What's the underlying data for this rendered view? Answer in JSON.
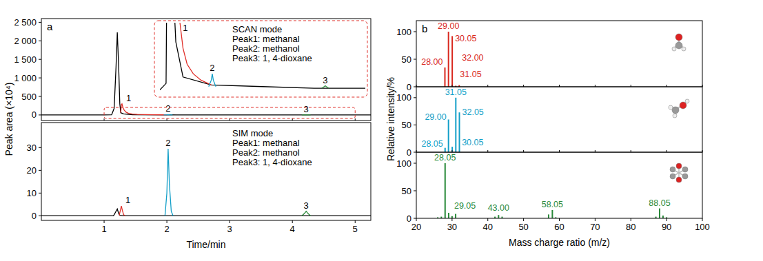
{
  "chart_data": [
    {
      "type": "line",
      "panel": "a",
      "y_label": "Peak area (×10⁴)",
      "text": [
        "SCAN mode",
        "Peak1: methanal",
        "Peak2: methanol",
        "Peak3: 1, 4-dioxane"
      ],
      "xlim": [
        0,
        5.25
      ],
      "xticks": [
        1,
        2,
        3,
        4,
        5
      ],
      "ylim": [
        -150,
        2600
      ],
      "yticks": [
        0,
        500,
        {
          "value": 1000,
          "label": "1 000"
        },
        {
          "value": 1500,
          "label": "1 500"
        },
        {
          "value": 2000,
          "label": "2 000"
        },
        {
          "value": 2500,
          "label": "2 500"
        }
      ],
      "tick_labels": "y",
      "inset": {
        "xlim": [
          1.0,
          5.0
        ],
        "ylim": [
          -2,
          42
        ]
      },
      "series": [
        {
          "color": "#000000",
          "x": [
            0,
            1.0,
            1.12,
            1.16,
            1.19,
            1.21,
            1.23,
            1.25,
            1.265,
            1.31,
            1.45,
            2.0,
            3.0,
            4.0,
            5.0,
            5.25
          ],
          "values": [
            0,
            0,
            4,
            180,
            1300,
            2230,
            1400,
            300,
            60,
            30,
            8,
            3,
            2,
            1,
            1,
            1
          ]
        },
        {
          "label": "1",
          "color": "#e0302a",
          "x": [
            1.265,
            1.275,
            1.285,
            1.3,
            1.32,
            1.35,
            1.39,
            1.45,
            1.53,
            1.65,
            1.8,
            2.0
          ],
          "values": [
            60,
            280,
            300,
            200,
            130,
            75,
            42,
            26,
            16,
            10,
            6,
            3
          ]
        },
        {
          "label": "2",
          "color": "#139fc8",
          "x": [
            1.95,
            2.0,
            2.02,
            2.04,
            2.09
          ],
          "values": [
            2,
            6,
            10,
            6,
            2
          ]
        },
        {
          "label": "3",
          "color": "#2a8a3a",
          "x": [
            4.15,
            4.2,
            4.22,
            4.24,
            4.29
          ],
          "values": [
            1,
            2,
            2.5,
            2,
            1
          ]
        }
      ]
    },
    {
      "type": "line",
      "x_label": "Time/min",
      "text": [
        "SIM mode",
        "Peak1: methanal",
        "Peak2: methanol",
        "Peak3: 1, 4-dioxane"
      ],
      "xlim": [
        0,
        5.25
      ],
      "xticks": [
        1,
        2,
        3,
        4,
        5
      ],
      "ylim": [
        -2,
        41
      ],
      "yticks": [
        0,
        10,
        20,
        30
      ],
      "series": [
        {
          "color": "#000000",
          "x": [
            0,
            1.15,
            1.18,
            1.21,
            1.23,
            1.25,
            1.3,
            5.25
          ],
          "values": [
            0,
            0,
            1.5,
            3.0,
            1.2,
            0.2,
            0,
            0
          ]
        },
        {
          "label": "1",
          "color": "#e0302a",
          "x": [
            1.24,
            1.26,
            1.275,
            1.29,
            1.31,
            1.33
          ],
          "values": [
            0.2,
            2.5,
            4.3,
            2.5,
            0.6,
            0
          ]
        },
        {
          "label": "2",
          "color": "#139fc8",
          "x": [
            1.97,
            2.0,
            2.02,
            2.04,
            2.07,
            2.1
          ],
          "values": [
            0,
            10,
            29.5,
            14,
            2,
            0
          ]
        },
        {
          "label": "3",
          "color": "#2a8a3a",
          "x": [
            4.15,
            4.19,
            4.22,
            4.25,
            4.29
          ],
          "values": [
            0,
            1,
            2,
            1,
            0
          ]
        }
      ]
    },
    {
      "type": "bar",
      "panel": "b",
      "color": "#d9281e",
      "x": [
        28.0,
        29.0,
        30.05,
        31.05,
        32.0
      ],
      "x_labels": [
        "28.00",
        "29.00",
        "30.05",
        "31.05",
        "32.00"
      ],
      "values": [
        35,
        100,
        92,
        2,
        3
      ],
      "xlim": [
        20,
        100
      ],
      "xticks": [
        20,
        30,
        40,
        50,
        60,
        70,
        80,
        90,
        100
      ],
      "ylim": [
        0,
        120
      ],
      "yticks": [
        0,
        50,
        100
      ],
      "tick_labels": "y"
    },
    {
      "type": "bar",
      "color": "#139fc8",
      "y_label": "Relative intensity/%",
      "x": [
        28.05,
        29.0,
        30.05,
        31.05,
        32.05
      ],
      "x_labels": [
        "28.05",
        "29.00",
        "30.05",
        "31.05",
        "32.05"
      ],
      "values": [
        8,
        60,
        10,
        100,
        73
      ],
      "xlim": [
        20,
        100
      ],
      "xticks": [
        20,
        30,
        40,
        50,
        60,
        70,
        80,
        90,
        100
      ],
      "ylim": [
        0,
        120
      ],
      "yticks": [
        0,
        50,
        100
      ],
      "tick_labels": "y"
    },
    {
      "type": "bar",
      "color": "#2a8a3a",
      "x_label": "Mass charge ratio (m/z)",
      "x": [
        26,
        27,
        28.05,
        29.05,
        30,
        31,
        42,
        43.0,
        44,
        57,
        58.05,
        59,
        87,
        88.05,
        89,
        90
      ],
      "x_labels": [
        null,
        null,
        "28.05",
        "29.05",
        null,
        null,
        null,
        "43.00",
        null,
        null,
        "58.05",
        null,
        null,
        "88.05",
        null,
        null
      ],
      "values": [
        2,
        3,
        100,
        10,
        4,
        8,
        3,
        6,
        3,
        7,
        15,
        2,
        3,
        18,
        5,
        2
      ],
      "xlim": [
        20,
        100
      ],
      "xticks": [
        20,
        30,
        40,
        50,
        60,
        70,
        80,
        90,
        100
      ],
      "ylim": [
        0,
        120
      ],
      "yticks": [
        0,
        50,
        100
      ]
    }
  ]
}
